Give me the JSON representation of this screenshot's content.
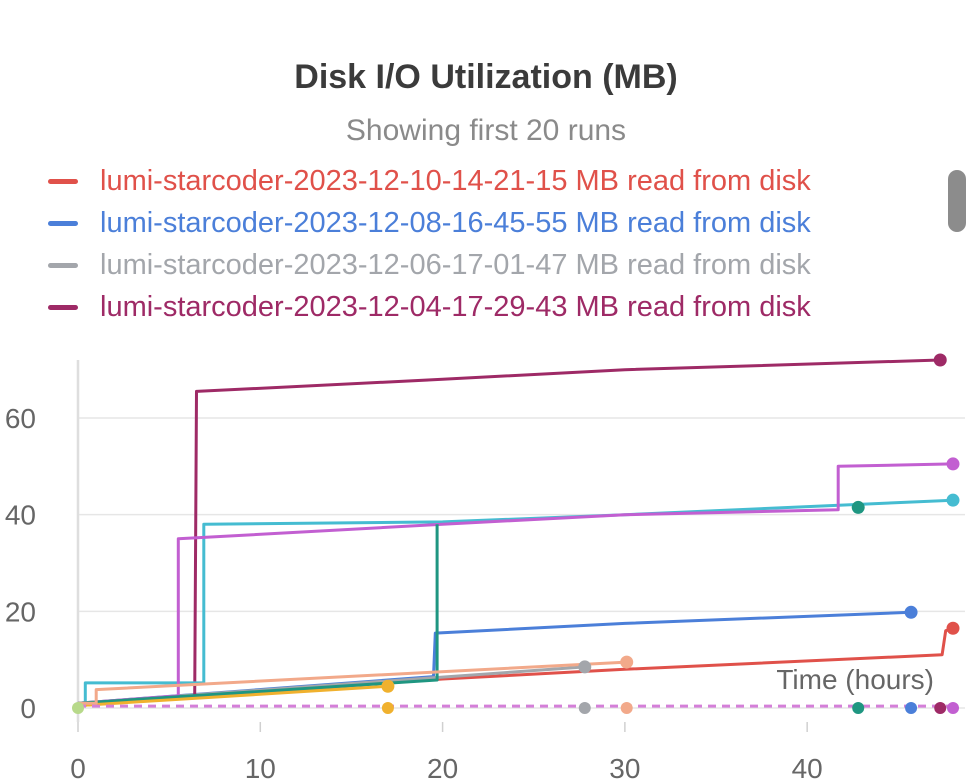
{
  "chart_data": {
    "type": "line",
    "title": "Disk I/O Utilization (MB)",
    "subtitle": "Showing first 20 runs",
    "xlabel": "Time (hours)",
    "ylabel": "",
    "xlim": [
      0,
      48
    ],
    "ylim": [
      0,
      72
    ],
    "x_ticks": [
      0,
      10,
      20,
      30,
      40
    ],
    "y_ticks": [
      0,
      20,
      40,
      60
    ],
    "legend": [
      {
        "label": "lumi-starcoder-2023-12-10-14-21-15 MB read from disk",
        "color": "#e0514a"
      },
      {
        "label": "lumi-starcoder-2023-12-08-16-45-55 MB read from disk",
        "color": "#4b7fd9"
      },
      {
        "label": "lumi-starcoder-2023-12-06-17-01-47 MB read from disk",
        "color": "#a3a6ab"
      },
      {
        "label": "lumi-starcoder-2023-12-04-17-29-43 MB read from disk",
        "color": "#9e2a66"
      }
    ],
    "series": [
      {
        "name": "lumi-starcoder-2023-12-10-14-21-15 MB read from disk",
        "color": "#e0514a",
        "x": [
          0,
          20,
          30,
          47.4,
          47.6,
          48
        ],
        "y": [
          0.5,
          6,
          8,
          11,
          16,
          16.5
        ],
        "marker_end": true
      },
      {
        "name": "lumi-starcoder-2023-12-08-16-45-55 MB read from disk",
        "color": "#4b7fd9",
        "x": [
          0,
          19.5,
          19.6,
          30,
          45.7
        ],
        "y": [
          1,
          6.5,
          15.5,
          17.5,
          19.8
        ],
        "marker_end": true
      },
      {
        "name": "lumi-starcoder-2023-12-06-17-01-47 MB read from disk",
        "color": "#a3a6ab",
        "x": [
          0,
          27.8
        ],
        "y": [
          1,
          8.5
        ],
        "marker_end": true
      },
      {
        "name": "lumi-starcoder-2023-12-04-17-29-43 MB read from disk",
        "color": "#9e2a66",
        "x": [
          0,
          6.4,
          6.5,
          20,
          30,
          47.3
        ],
        "y": [
          0.5,
          2.5,
          65.5,
          68,
          70,
          72
        ],
        "marker_end": true
      },
      {
        "color": "#45bcd1",
        "x": [
          0,
          0.4,
          0.4,
          6.9,
          6.9,
          20,
          30,
          48
        ],
        "y": [
          0.5,
          0.5,
          5.2,
          5.2,
          38,
          38.5,
          40,
          43
        ],
        "marker_end": true
      },
      {
        "color": "#c25fd1",
        "x": [
          0,
          5.5,
          5.5,
          20,
          30,
          41.7,
          41.7,
          48
        ],
        "y": [
          1,
          2.5,
          35,
          38,
          40,
          41,
          50,
          50.5
        ],
        "marker_end": true
      },
      {
        "color": "#1f9681",
        "x": [
          0,
          19.7,
          19.7
        ],
        "y": [
          1,
          5.8,
          38
        ],
        "marker_end": false
      },
      {
        "color": "#1f9681",
        "x": [
          42.8
        ],
        "y": [
          41.5
        ],
        "marker_end": true
      },
      {
        "color": "#f0b12e",
        "x": [
          0,
          17
        ],
        "y": [
          0.5,
          4.5
        ],
        "marker_end": true
      },
      {
        "color": "#f2a98a",
        "x": [
          0,
          1,
          1,
          30.1
        ],
        "y": [
          1,
          1,
          3.8,
          9.5
        ],
        "marker_end": true
      },
      {
        "color": "#d47fd8",
        "dashed": true,
        "x": [
          0,
          48
        ],
        "y": [
          0.4,
          0.4
        ],
        "marker_end": false
      }
    ],
    "baseline_points": [
      {
        "x": 0,
        "y": 0,
        "color": "#b7d98a"
      },
      {
        "x": 17,
        "y": 0,
        "color": "#f0b12e"
      },
      {
        "x": 27.8,
        "y": 0,
        "color": "#a3a6ab"
      },
      {
        "x": 30.1,
        "y": 0,
        "color": "#f2a98a"
      },
      {
        "x": 42.8,
        "y": 0,
        "color": "#1f9681"
      },
      {
        "x": 45.7,
        "y": 0,
        "color": "#4b7fd9"
      },
      {
        "x": 47.3,
        "y": 0,
        "color": "#9e2a66"
      },
      {
        "x": 48,
        "y": 0,
        "color": "#c25fd1"
      }
    ],
    "grid": true,
    "legend_position": "top"
  }
}
